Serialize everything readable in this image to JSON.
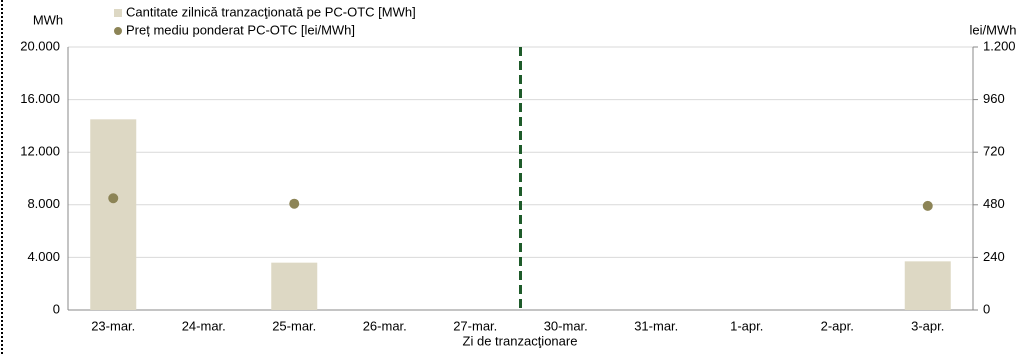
{
  "chart_data": {
    "type": "bar",
    "y_axis_label": "MWh",
    "y2_axis_label": "lei/MWh",
    "x_axis_label": "Zi de tranzacţionare",
    "categories": [
      "23-mar.",
      "24-mar.",
      "25-mar.",
      "26-mar.",
      "27-mar.",
      "30-mar.",
      "31-mar.",
      "1-apr.",
      "2-apr.",
      "3-apr."
    ],
    "series": [
      {
        "name": "Cantitate zilnică tranzacţionată pe PC-OTC [MWh]",
        "type": "bar",
        "color": "#ddd8c4",
        "values": [
          14500,
          null,
          3600,
          null,
          null,
          null,
          null,
          null,
          null,
          3700
        ]
      },
      {
        "name": "Preț mediu ponderat PC-OTC [lei/MWh]",
        "type": "scatter",
        "axis": "y2",
        "color": "#8c8456",
        "values": [
          510,
          null,
          485,
          null,
          null,
          null,
          null,
          null,
          null,
          475
        ]
      }
    ],
    "ylim": [
      0,
      20000
    ],
    "yticks": [
      0,
      {
        "value": 4000,
        "label": "4.000"
      },
      {
        "value": 8000,
        "label": "8.000"
      },
      {
        "value": 12000,
        "label": "12.000"
      },
      {
        "value": 16000,
        "label": "16.000"
      },
      {
        "value": 20000,
        "label": "20.000"
      }
    ],
    "y2lim": [
      0,
      1200
    ],
    "y2ticks": [
      0,
      240,
      480,
      720,
      960,
      {
        "value": 1200,
        "label": "1.200"
      }
    ],
    "grid": true
  }
}
